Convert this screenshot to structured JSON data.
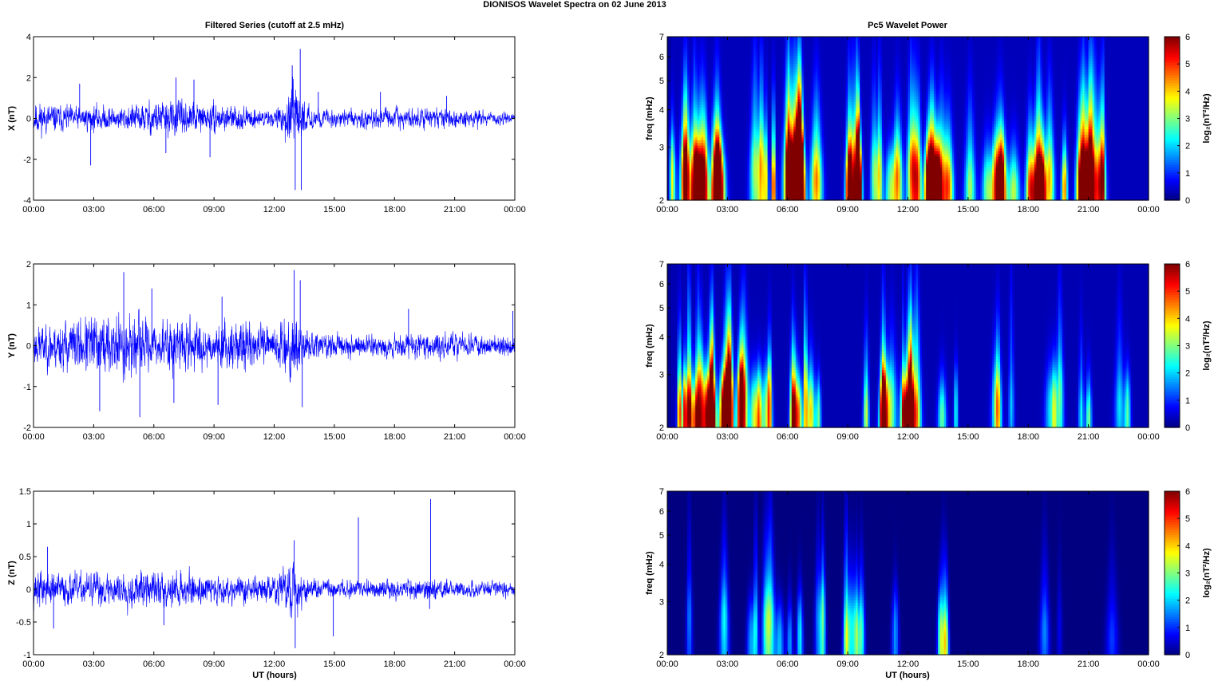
{
  "figure_title": "DIONISOS Wavelet Spectra on 02 June      2013",
  "left_title": "Filtered Series (cutoff at 2.5 mHz)",
  "right_title": "Pc5 Wavelet Power",
  "xlabel": "UT (hours)",
  "x_ticks": [
    "00:00",
    "03:00",
    "06:00",
    "09:00",
    "12:00",
    "15:00",
    "18:00",
    "21:00",
    "00:00"
  ],
  "colormap": "jet",
  "chart_data": [
    {
      "type": "line",
      "panel": "X",
      "ylabel": "X (nT)",
      "xlim_hours": [
        0,
        24
      ],
      "ylim": [
        -4,
        4
      ],
      "yticks": [
        -4,
        -2,
        0,
        2,
        4
      ],
      "ytick_labels": [
        "-4",
        "-2",
        "0",
        "2",
        "4"
      ],
      "color": "#0000ff",
      "seed": 11,
      "envelope": {
        "x": [
          0,
          1,
          2,
          3,
          4,
          5,
          6,
          7,
          8,
          9,
          10,
          11,
          12,
          12.5,
          13,
          13.5,
          14,
          15,
          16,
          17,
          18,
          19,
          20,
          21,
          22,
          23,
          24
        ],
        "amp": [
          0.8,
          0.65,
          0.55,
          0.6,
          0.55,
          0.6,
          0.85,
          0.8,
          0.7,
          0.65,
          0.55,
          0.45,
          0.35,
          0.9,
          1.5,
          0.7,
          0.45,
          0.4,
          0.45,
          0.45,
          0.45,
          0.45,
          0.45,
          0.45,
          0.4,
          0.3,
          0.25
        ]
      },
      "spikes": [
        {
          "x": 2.85,
          "y": -2.3
        },
        {
          "x": 2.3,
          "y": 1.7
        },
        {
          "x": 6.6,
          "y": -1.7
        },
        {
          "x": 7.1,
          "y": 2.0
        },
        {
          "x": 8.0,
          "y": 1.9
        },
        {
          "x": 8.8,
          "y": -1.9
        },
        {
          "x": 12.9,
          "y": 2.6
        },
        {
          "x": 13.05,
          "y": -3.5
        },
        {
          "x": 13.3,
          "y": 3.4
        },
        {
          "x": 13.35,
          "y": -3.5
        },
        {
          "x": 14.2,
          "y": 1.3
        },
        {
          "x": 17.3,
          "y": 1.3
        },
        {
          "x": 20.6,
          "y": 1.1
        }
      ]
    },
    {
      "type": "line",
      "panel": "Y",
      "ylabel": "Y (nT)",
      "xlim_hours": [
        0,
        24
      ],
      "ylim": [
        -2,
        2
      ],
      "yticks": [
        -2,
        -1,
        0,
        1,
        2
      ],
      "ytick_labels": [
        "-2",
        "-1",
        "0",
        "1",
        "2"
      ],
      "color": "#0000ff",
      "seed": 23,
      "envelope": {
        "x": [
          0,
          1,
          2,
          3,
          4,
          5,
          6,
          7,
          8,
          9,
          10,
          11,
          12,
          12.5,
          13,
          13.5,
          14,
          15,
          16,
          17,
          18,
          19,
          20,
          21,
          22,
          23,
          24
        ],
        "amp": [
          0.45,
          0.55,
          0.6,
          0.7,
          0.8,
          0.75,
          0.45,
          0.65,
          0.6,
          0.45,
          0.55,
          0.5,
          0.4,
          0.7,
          0.9,
          0.45,
          0.3,
          0.3,
          0.3,
          0.25,
          0.25,
          0.3,
          0.3,
          0.3,
          0.25,
          0.25,
          0.3
        ]
      },
      "spikes": [
        {
          "x": 3.3,
          "y": -1.6
        },
        {
          "x": 4.5,
          "y": 1.8
        },
        {
          "x": 5.3,
          "y": -1.75
        },
        {
          "x": 5.9,
          "y": 1.4
        },
        {
          "x": 7.0,
          "y": -1.4
        },
        {
          "x": 9.2,
          "y": -1.45
        },
        {
          "x": 9.4,
          "y": 1.2
        },
        {
          "x": 13.0,
          "y": 1.85
        },
        {
          "x": 13.4,
          "y": -1.5
        },
        {
          "x": 13.3,
          "y": 1.6
        },
        {
          "x": 18.7,
          "y": 0.9
        },
        {
          "x": 23.9,
          "y": 0.85
        }
      ]
    },
    {
      "type": "line",
      "panel": "Z",
      "ylabel": "Z (nT)",
      "xlim_hours": [
        0,
        24
      ],
      "ylim": [
        -1,
        1.5
      ],
      "yticks": [
        -1,
        -0.5,
        0,
        0.5,
        1,
        1.5
      ],
      "ytick_labels": [
        "-1",
        "-0.5",
        "0",
        "0.5",
        "1",
        "1.5"
      ],
      "color": "#0000ff",
      "seed": 37,
      "envelope": {
        "x": [
          0,
          1,
          2,
          3,
          4,
          5,
          6,
          7,
          8,
          9,
          10,
          11,
          12,
          12.5,
          13,
          13.5,
          14,
          15,
          16,
          17,
          18,
          19,
          20,
          21,
          22,
          23,
          24
        ],
        "amp": [
          0.28,
          0.25,
          0.22,
          0.24,
          0.25,
          0.27,
          0.26,
          0.28,
          0.22,
          0.2,
          0.22,
          0.2,
          0.18,
          0.35,
          0.45,
          0.22,
          0.15,
          0.14,
          0.14,
          0.14,
          0.13,
          0.14,
          0.18,
          0.13,
          0.12,
          0.12,
          0.1
        ]
      },
      "spikes": [
        {
          "x": 0.7,
          "y": 0.65
        },
        {
          "x": 1.0,
          "y": -0.6
        },
        {
          "x": 6.5,
          "y": -0.55
        },
        {
          "x": 13.05,
          "y": -0.9
        },
        {
          "x": 13.0,
          "y": 0.75
        },
        {
          "x": 14.95,
          "y": -0.72
        },
        {
          "x": 16.2,
          "y": 1.1
        },
        {
          "x": 19.8,
          "y": 1.38
        },
        {
          "x": 19.75,
          "y": -0.3
        }
      ]
    },
    {
      "type": "heatmap",
      "panel": "X power",
      "ylabel": "freq (mHz)",
      "colorbar_label": "log₂(nT²/Hz)",
      "xlim_hours": [
        0,
        24
      ],
      "ylim": [
        2,
        7
      ],
      "yscale": "log",
      "yticks": [
        2,
        3,
        4,
        5,
        6,
        7
      ],
      "ytick_labels": [
        "2",
        "3",
        "4",
        "5",
        "6",
        "7"
      ],
      "clim": [
        0,
        6
      ],
      "cticks": [
        0,
        1,
        2,
        3,
        4,
        5,
        6
      ],
      "ctick_labels": [
        "0",
        "1",
        "2",
        "3",
        "4",
        "5",
        "6"
      ],
      "seed": 101,
      "density": 1.0,
      "background": 0.35,
      "gain": 4.2,
      "activity": {
        "x": [
          0,
          1,
          2,
          3,
          4,
          5,
          6,
          7,
          8,
          9,
          10,
          11,
          12,
          13,
          14,
          15,
          16,
          17,
          18,
          19,
          20,
          21,
          22,
          23,
          24
        ],
        "level": [
          1.0,
          0.9,
          0.8,
          0.85,
          0.8,
          0.8,
          0.95,
          0.95,
          0.85,
          0.8,
          0.8,
          0.75,
          0.75,
          1.0,
          0.85,
          0.8,
          0.8,
          0.8,
          0.8,
          0.75,
          0.7,
          0.7,
          0.7,
          0.1,
          0.0
        ]
      }
    },
    {
      "type": "heatmap",
      "panel": "Y power",
      "ylabel": "freq (mHz)",
      "colorbar_label": "log₂(nT²/Hz)",
      "xlim_hours": [
        0,
        24
      ],
      "ylim": [
        2,
        7
      ],
      "yscale": "log",
      "yticks": [
        2,
        3,
        4,
        5,
        6,
        7
      ],
      "ytick_labels": [
        "2",
        "3",
        "4",
        "5",
        "6",
        "7"
      ],
      "clim": [
        0,
        6
      ],
      "cticks": [
        0,
        1,
        2,
        3,
        4,
        5,
        6
      ],
      "ctick_labels": [
        "0",
        "1",
        "2",
        "3",
        "4",
        "5",
        "6"
      ],
      "seed": 202,
      "density": 0.85,
      "background": 0.3,
      "gain": 4.0,
      "activity": {
        "x": [
          0,
          1,
          2,
          3,
          4,
          5,
          6,
          7,
          8,
          9,
          10,
          11,
          12,
          13,
          14,
          15,
          16,
          17,
          18,
          19,
          20,
          21,
          22,
          23,
          24
        ],
        "level": [
          0.8,
          0.9,
          0.85,
          1.0,
          1.0,
          0.95,
          0.85,
          0.95,
          0.85,
          0.85,
          0.85,
          0.7,
          0.65,
          0.95,
          0.65,
          0.55,
          0.55,
          0.5,
          0.6,
          0.55,
          0.45,
          0.5,
          0.55,
          0.55,
          0.2
        ]
      }
    },
    {
      "type": "heatmap",
      "panel": "Z power",
      "ylabel": "freq (mHz)",
      "colorbar_label": "log₂(nT²/Hz)",
      "xlim_hours": [
        0,
        24
      ],
      "ylim": [
        2,
        7
      ],
      "yscale": "log",
      "yticks": [
        2,
        3,
        4,
        5,
        6,
        7
      ],
      "ytick_labels": [
        "2",
        "3",
        "4",
        "5",
        "6",
        "7"
      ],
      "clim": [
        0,
        6
      ],
      "cticks": [
        0,
        1,
        2,
        3,
        4,
        5,
        6
      ],
      "ctick_labels": [
        "0",
        "1",
        "2",
        "3",
        "4",
        "5",
        "6"
      ],
      "seed": 303,
      "density": 0.55,
      "background": 0.0,
      "gain": 3.2,
      "activity": {
        "x": [
          0,
          1,
          2,
          3,
          4,
          5,
          6,
          7,
          8,
          9,
          10,
          11,
          12,
          13,
          14,
          15,
          16,
          17,
          18,
          19,
          20,
          21,
          22,
          23,
          24
        ],
        "level": [
          0.7,
          0.6,
          0.55,
          0.7,
          0.75,
          0.75,
          0.5,
          0.8,
          0.6,
          0.7,
          0.55,
          0.55,
          0.5,
          0.95,
          0.55,
          0.45,
          0.45,
          0.25,
          0.3,
          0.4,
          0.1,
          0.2,
          0.3,
          0.3,
          0.1
        ]
      }
    }
  ]
}
